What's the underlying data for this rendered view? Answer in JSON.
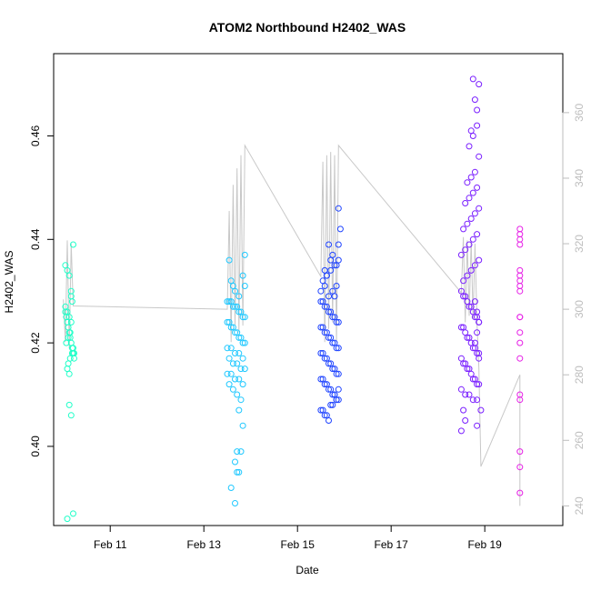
{
  "chart_data": {
    "type": "scatter",
    "title": "ATOM2 Northbound H2402_WAS",
    "xlabel": "Date",
    "ylabel": "H2402_WAS",
    "x_range_days": [
      "2024-02-09T19:00",
      "2024-02-20T16:00"
    ],
    "x_ticks": [
      {
        "date": "2024-02-11",
        "label": "Feb 11"
      },
      {
        "date": "2024-02-13",
        "label": "Feb 13"
      },
      {
        "date": "2024-02-15",
        "label": "Feb 15"
      },
      {
        "date": "2024-02-17",
        "label": "Feb 17"
      },
      {
        "date": "2024-02-19",
        "label": "Feb 19"
      }
    ],
    "ylim": [
      0.3847,
      0.4759
    ],
    "y_ticks": [
      0.4,
      0.42,
      0.44,
      0.46
    ],
    "y_tick_labels": [
      "0.40",
      "0.42",
      "0.44",
      "0.46"
    ],
    "y2lim": [
      234,
      378
    ],
    "y2_ticks": [
      240,
      260,
      280,
      300,
      320,
      340,
      360
    ],
    "y2_tick_labels": [
      "240",
      "260",
      "280",
      "300",
      "320",
      "340",
      "360"
    ],
    "grid": false,
    "legend": "none",
    "point_style": "open-circle",
    "line_color": "#c8c8c8",
    "series": [
      {
        "color": "#1fffc8",
        "x": [
          "2024-02-10T01:00",
          "2024-02-10T01:30",
          "2024-02-10T02:00",
          "2024-02-10T02:30",
          "2024-02-10T03:00",
          "2024-02-10T03:30",
          "2024-02-10T04:00",
          "2024-02-10T04:30",
          "2024-02-10T05:00",
          "2024-02-10T05:30",
          "2024-02-10T01:00",
          "2024-02-10T02:00",
          "2024-02-10T03:00",
          "2024-02-10T04:00",
          "2024-02-10T05:00",
          "2024-02-10T01:30",
          "2024-02-10T02:30",
          "2024-02-10T03:30",
          "2024-02-10T04:30",
          "2024-02-10T05:30",
          "2024-02-10T01:00",
          "2024-02-10T02:00",
          "2024-02-10T03:00",
          "2024-02-10T04:00",
          "2024-02-10T05:00",
          "2024-02-10T02:00",
          "2024-02-10T03:00",
          "2024-02-10T04:00",
          "2024-02-10T02:30",
          "2024-02-10T03:30",
          "2024-02-10T03:00",
          "2024-02-10T04:00",
          "2024-02-10T02:00",
          "2024-02-10T05:00",
          "2024-02-10T04:30"
        ],
        "y": [
          0.426,
          0.425,
          0.424,
          0.423,
          0.422,
          0.421,
          0.42,
          0.419,
          0.418,
          0.417,
          0.427,
          0.426,
          0.425,
          0.424,
          0.419,
          0.42,
          0.421,
          0.422,
          0.418,
          0.418,
          0.435,
          0.434,
          0.433,
          0.43,
          0.439,
          0.415,
          0.414,
          0.429,
          0.416,
          0.417,
          0.408,
          0.406,
          0.386,
          0.387,
          0.428
        ]
      },
      {
        "color": "#1fc8ff",
        "x": [
          "2024-02-13T12:00",
          "2024-02-13T13:00",
          "2024-02-13T14:00",
          "2024-02-13T15:00",
          "2024-02-13T16:00",
          "2024-02-13T17:00",
          "2024-02-13T18:00",
          "2024-02-13T19:00",
          "2024-02-13T20:00",
          "2024-02-13T21:00",
          "2024-02-13T12:00",
          "2024-02-13T13:00",
          "2024-02-13T14:00",
          "2024-02-13T15:00",
          "2024-02-13T16:00",
          "2024-02-13T17:00",
          "2024-02-13T18:00",
          "2024-02-13T19:00",
          "2024-02-13T20:00",
          "2024-02-13T21:00",
          "2024-02-13T12:00",
          "2024-02-13T14:00",
          "2024-02-13T16:00",
          "2024-02-13T18:00",
          "2024-02-13T20:00",
          "2024-02-13T13:00",
          "2024-02-13T15:00",
          "2024-02-13T17:00",
          "2024-02-13T19:00",
          "2024-02-13T21:00",
          "2024-02-13T12:00",
          "2024-02-13T14:00",
          "2024-02-13T16:00",
          "2024-02-13T18:00",
          "2024-02-13T20:00",
          "2024-02-13T13:00",
          "2024-02-13T15:00",
          "2024-02-13T17:00",
          "2024-02-13T19:00",
          "2024-02-13T21:00",
          "2024-02-13T14:00",
          "2024-02-13T16:00",
          "2024-02-13T18:00",
          "2024-02-13T20:00",
          "2024-02-13T15:00",
          "2024-02-13T17:00",
          "2024-02-13T19:00",
          "2024-02-13T16:00",
          "2024-02-13T18:00",
          "2024-02-13T17:00",
          "2024-02-13T14:00",
          "2024-02-13T16:00",
          "2024-02-13T18:00",
          "2024-02-13T20:00",
          "2024-02-13T21:00",
          "2024-02-13T13:00"
        ],
        "y": [
          0.428,
          0.428,
          0.428,
          0.427,
          0.427,
          0.427,
          0.426,
          0.426,
          0.425,
          0.425,
          0.424,
          0.424,
          0.423,
          0.423,
          0.422,
          0.422,
          0.421,
          0.421,
          0.42,
          0.42,
          0.419,
          0.419,
          0.418,
          0.418,
          0.417,
          0.417,
          0.416,
          0.416,
          0.415,
          0.415,
          0.414,
          0.414,
          0.413,
          0.413,
          0.412,
          0.412,
          0.411,
          0.41,
          0.409,
          0.431,
          0.432,
          0.43,
          0.429,
          0.433,
          0.431,
          0.399,
          0.399,
          0.397,
          0.395,
          0.395,
          0.392,
          0.389,
          0.407,
          0.404,
          0.437,
          0.436
        ]
      },
      {
        "color": "#1f44ff",
        "x": [
          "2024-02-15T12:00",
          "2024-02-15T13:00",
          "2024-02-15T14:00",
          "2024-02-15T15:00",
          "2024-02-15T16:00",
          "2024-02-15T17:00",
          "2024-02-15T18:00",
          "2024-02-15T19:00",
          "2024-02-15T20:00",
          "2024-02-15T21:00",
          "2024-02-15T12:00",
          "2024-02-15T13:00",
          "2024-02-15T14:00",
          "2024-02-15T15:00",
          "2024-02-15T16:00",
          "2024-02-15T17:00",
          "2024-02-15T18:00",
          "2024-02-15T19:00",
          "2024-02-15T20:00",
          "2024-02-15T21:00",
          "2024-02-15T12:00",
          "2024-02-15T13:00",
          "2024-02-15T14:00",
          "2024-02-15T15:00",
          "2024-02-15T16:00",
          "2024-02-15T17:00",
          "2024-02-15T18:00",
          "2024-02-15T19:00",
          "2024-02-15T20:00",
          "2024-02-15T21:00",
          "2024-02-15T12:00",
          "2024-02-15T13:00",
          "2024-02-15T14:00",
          "2024-02-15T15:00",
          "2024-02-15T16:00",
          "2024-02-15T17:00",
          "2024-02-15T18:00",
          "2024-02-15T19:00",
          "2024-02-15T20:00",
          "2024-02-15T21:00",
          "2024-02-15T12:00",
          "2024-02-15T14:00",
          "2024-02-15T16:00",
          "2024-02-15T18:00",
          "2024-02-15T20:00",
          "2024-02-15T13:00",
          "2024-02-15T15:00",
          "2024-02-15T17:00",
          "2024-02-15T19:00",
          "2024-02-15T21:00",
          "2024-02-15T12:00",
          "2024-02-15T14:00",
          "2024-02-15T16:00",
          "2024-02-15T18:00",
          "2024-02-15T20:00",
          "2024-02-15T13:00",
          "2024-02-15T15:00",
          "2024-02-15T17:00",
          "2024-02-15T19:00",
          "2024-02-15T21:00",
          "2024-02-15T14:00",
          "2024-02-15T16:00",
          "2024-02-15T18:00",
          "2024-02-15T20:00",
          "2024-02-15T15:00",
          "2024-02-15T17:00",
          "2024-02-15T19:00",
          "2024-02-15T21:00",
          "2024-02-15T22:00",
          "2024-02-15T21:00"
        ],
        "y": [
          0.428,
          0.428,
          0.427,
          0.427,
          0.426,
          0.426,
          0.425,
          0.425,
          0.424,
          0.424,
          0.423,
          0.423,
          0.422,
          0.422,
          0.421,
          0.421,
          0.42,
          0.42,
          0.419,
          0.419,
          0.418,
          0.418,
          0.417,
          0.417,
          0.416,
          0.416,
          0.415,
          0.415,
          0.414,
          0.414,
          0.413,
          0.413,
          0.412,
          0.412,
          0.411,
          0.411,
          0.41,
          0.41,
          0.409,
          0.409,
          0.43,
          0.431,
          0.429,
          0.43,
          0.431,
          0.432,
          0.433,
          0.434,
          0.435,
          0.436,
          0.407,
          0.406,
          0.405,
          0.408,
          0.409,
          0.407,
          0.406,
          0.408,
          0.41,
          0.411,
          0.434,
          0.439,
          0.437,
          0.435,
          0.433,
          0.436,
          0.429,
          0.446,
          0.442,
          0.439
        ]
      },
      {
        "color": "#7a1fff",
        "x": [
          "2024-02-18T12:00",
          "2024-02-18T13:00",
          "2024-02-18T14:00",
          "2024-02-18T15:00",
          "2024-02-18T16:00",
          "2024-02-18T17:00",
          "2024-02-18T18:00",
          "2024-02-18T19:00",
          "2024-02-18T20:00",
          "2024-02-18T21:00",
          "2024-02-18T12:00",
          "2024-02-18T13:00",
          "2024-02-18T14:00",
          "2024-02-18T15:00",
          "2024-02-18T16:00",
          "2024-02-18T17:00",
          "2024-02-18T18:00",
          "2024-02-18T19:00",
          "2024-02-18T20:00",
          "2024-02-18T21:00",
          "2024-02-18T12:00",
          "2024-02-18T13:00",
          "2024-02-18T14:00",
          "2024-02-18T15:00",
          "2024-02-18T16:00",
          "2024-02-18T17:00",
          "2024-02-18T18:00",
          "2024-02-18T19:00",
          "2024-02-18T20:00",
          "2024-02-18T21:00",
          "2024-02-18T12:00",
          "2024-02-18T14:00",
          "2024-02-18T16:00",
          "2024-02-18T18:00",
          "2024-02-18T20:00",
          "2024-02-18T13:00",
          "2024-02-18T15:00",
          "2024-02-18T17:00",
          "2024-02-18T19:00",
          "2024-02-18T21:00",
          "2024-02-18T12:00",
          "2024-02-18T14:00",
          "2024-02-18T16:00",
          "2024-02-18T18:00",
          "2024-02-18T20:00",
          "2024-02-18T13:00",
          "2024-02-18T15:00",
          "2024-02-18T17:00",
          "2024-02-18T19:00",
          "2024-02-18T21:00",
          "2024-02-18T14:00",
          "2024-02-18T16:00",
          "2024-02-18T18:00",
          "2024-02-18T20:00",
          "2024-02-18T15:00",
          "2024-02-18T17:00",
          "2024-02-18T19:00",
          "2024-02-18T21:00",
          "2024-02-18T16:00",
          "2024-02-18T18:00",
          "2024-02-18T20:00",
          "2024-02-18T17:00",
          "2024-02-18T19:00",
          "2024-02-18T21:00",
          "2024-02-18T18:00",
          "2024-02-18T20:00",
          "2024-02-18T19:00",
          "2024-02-18T20:00",
          "2024-02-18T21:00",
          "2024-02-18T20:00",
          "2024-02-18T19:00",
          "2024-02-18T21:00",
          "2024-02-18T20:00",
          "2024-02-18T12:00",
          "2024-02-18T13:00",
          "2024-02-18T14:00",
          "2024-02-18T22:00"
        ],
        "y": [
          0.43,
          0.429,
          0.429,
          0.428,
          0.427,
          0.427,
          0.426,
          0.425,
          0.425,
          0.424,
          0.423,
          0.423,
          0.422,
          0.421,
          0.421,
          0.42,
          0.419,
          0.419,
          0.418,
          0.417,
          0.417,
          0.416,
          0.416,
          0.415,
          0.415,
          0.414,
          0.413,
          0.413,
          0.412,
          0.412,
          0.411,
          0.41,
          0.41,
          0.409,
          0.409,
          0.432,
          0.433,
          0.434,
          0.435,
          0.436,
          0.437,
          0.438,
          0.439,
          0.44,
          0.441,
          0.442,
          0.443,
          0.444,
          0.445,
          0.446,
          0.447,
          0.448,
          0.449,
          0.45,
          0.451,
          0.452,
          0.453,
          0.456,
          0.458,
          0.46,
          0.462,
          0.461,
          0.467,
          0.47,
          0.471,
          0.465,
          0.428,
          0.426,
          0.424,
          0.422,
          0.42,
          0.418,
          0.404,
          0.403,
          0.407,
          0.405,
          0.407
        ]
      },
      {
        "color": "#e61fe6",
        "x": [
          "2024-02-19T18:00",
          "2024-02-19T18:00",
          "2024-02-19T18:00",
          "2024-02-19T18:00",
          "2024-02-19T18:00",
          "2024-02-19T18:00",
          "2024-02-19T18:00",
          "2024-02-19T18:00",
          "2024-02-19T18:00",
          "2024-02-19T18:00",
          "2024-02-19T18:00",
          "2024-02-19T18:00",
          "2024-02-19T18:00",
          "2024-02-19T18:00",
          "2024-02-19T18:00",
          "2024-02-19T18:00",
          "2024-02-19T18:00",
          "2024-02-19T18:00",
          "2024-02-19T18:00"
        ],
        "y": [
          0.442,
          0.441,
          0.44,
          0.439,
          0.434,
          0.433,
          0.431,
          0.425,
          0.425,
          0.422,
          0.42,
          0.417,
          0.41,
          0.409,
          0.399,
          0.396,
          0.391,
          0.43,
          0.432
        ]
      }
    ],
    "secondary_line": {
      "color": "#c8c8c8",
      "x": [
        "2024-02-10T00:00",
        "2024-02-10T01:00",
        "2024-02-10T02:00",
        "2024-02-10T03:00",
        "2024-02-10T04:00",
        "2024-02-10T05:00",
        "2024-02-13T12:00",
        "2024-02-13T13:00",
        "2024-02-13T14:00",
        "2024-02-13T15:00",
        "2024-02-13T16:00",
        "2024-02-13T17:00",
        "2024-02-13T18:00",
        "2024-02-13T19:00",
        "2024-02-13T20:00",
        "2024-02-13T21:00",
        "2024-02-15T12:00",
        "2024-02-15T13:00",
        "2024-02-15T14:00",
        "2024-02-15T15:00",
        "2024-02-15T16:00",
        "2024-02-15T17:00",
        "2024-02-15T18:00",
        "2024-02-15T19:00",
        "2024-02-15T20:00",
        "2024-02-15T21:00",
        "2024-02-18T12:00",
        "2024-02-18T13:00",
        "2024-02-18T14:00",
        "2024-02-18T15:00",
        "2024-02-18T16:00",
        "2024-02-18T17:00",
        "2024-02-18T18:00",
        "2024-02-18T19:00",
        "2024-02-18T20:00",
        "2024-02-18T21:00",
        "2024-02-18T22:00",
        "2024-02-19T18:00",
        "2024-02-19T18:00"
      ],
      "y": [
        303,
        290,
        321,
        288,
        320,
        301,
        300,
        330,
        290,
        338,
        295,
        343,
        293,
        347,
        295,
        350,
        310,
        345,
        290,
        347,
        294,
        348,
        296,
        347,
        290,
        350,
        305,
        322,
        296,
        321,
        298,
        321,
        297,
        320,
        296,
        282,
        252,
        280,
        240
      ]
    }
  }
}
